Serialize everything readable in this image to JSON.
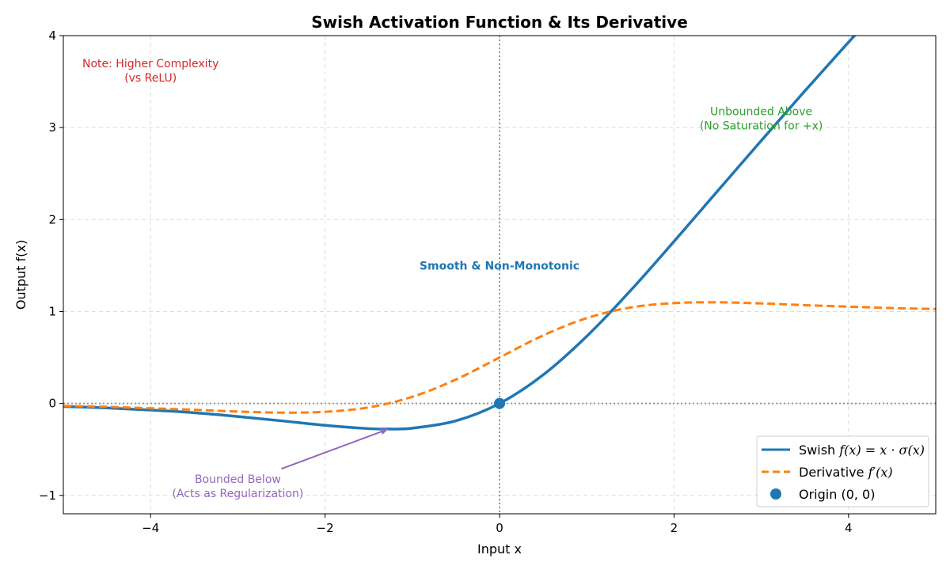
{
  "chart_data": {
    "type": "line",
    "title": "Swish Activation Function & Its Derivative",
    "xlabel": "Input x",
    "ylabel": "Output f(x)",
    "xlim": [
      -5,
      5
    ],
    "ylim": [
      -1.2,
      4
    ],
    "xticks": [
      -4,
      -2,
      0,
      2,
      4
    ],
    "xtick_labels": [
      "−4",
      "−2",
      "0",
      "2",
      "4"
    ],
    "yticks": [
      -1,
      0,
      1,
      2,
      3,
      4
    ],
    "ytick_labels": [
      "−1",
      "0",
      "1",
      "2",
      "3",
      "4"
    ],
    "grid": true,
    "legend_position": "lower-right",
    "series": [
      {
        "name": "Swish f(x) = x · σ(x)",
        "legend_prefix": "Swish ",
        "legend_math": "f(x) = x · σ(x)",
        "style": "solid",
        "color": "#1f77b4",
        "x": [
          -5,
          -4.5,
          -4,
          -3.5,
          -3,
          -2.5,
          -2,
          -1.5,
          -1.278,
          -1,
          -0.5,
          0,
          0.5,
          1,
          1.5,
          2,
          2.5,
          3,
          3.5,
          4,
          4.5,
          5
        ],
        "y": [
          -0.033,
          -0.049,
          -0.072,
          -0.101,
          -0.142,
          -0.189,
          -0.238,
          -0.274,
          -0.278,
          -0.269,
          -0.189,
          0,
          0.311,
          0.731,
          1.226,
          1.762,
          2.311,
          2.858,
          3.399,
          3.928,
          4.451,
          4.967
        ]
      },
      {
        "name": "Derivative f′(x)",
        "legend_prefix": "Derivative ",
        "legend_math": "f′(x)",
        "style": "dashed",
        "color": "#ff7f0e",
        "x": [
          -5,
          -4.5,
          -4,
          -3.5,
          -3,
          -2.5,
          -2,
          -1.5,
          -1,
          -0.5,
          0,
          0.5,
          1,
          1.5,
          2,
          2.5,
          3,
          3.5,
          4,
          4.5,
          5
        ],
        "y": [
          -0.027,
          -0.037,
          -0.053,
          -0.069,
          -0.088,
          -0.1,
          -0.091,
          -0.043,
          0.072,
          0.26,
          0.5,
          0.74,
          0.928,
          1.043,
          1.091,
          1.1,
          1.088,
          1.069,
          1.053,
          1.037,
          1.027
        ]
      },
      {
        "name": "Origin (0, 0)",
        "legend_label": "Origin (0, 0)",
        "style": "marker",
        "color": "#1f77b4",
        "x": [
          0
        ],
        "y": [
          0
        ]
      }
    ],
    "reference_lines": {
      "x": 0,
      "y": 0,
      "color": "#999999"
    },
    "annotations": [
      {
        "lines": [
          "Note: Higher Complexity",
          "(vs ReLU)"
        ],
        "x": -4,
        "y": 3.62,
        "color": "#d62728",
        "bold": false
      },
      {
        "lines": [
          "Unbounded Above",
          "(No Saturation for +x)"
        ],
        "x": 3,
        "y": 3.1,
        "color": "#2ca02c",
        "bold": false
      },
      {
        "lines": [
          "Smooth & Non-Monotonic"
        ],
        "x": 0,
        "y": 1.5,
        "color": "#1f77b4",
        "bold": true
      },
      {
        "lines": [
          "Bounded Below",
          "(Acts as Regularization)"
        ],
        "x": -3,
        "y": -0.9,
        "color": "#9467bd",
        "bold": false,
        "arrow_to": [
          -1.28,
          -0.28
        ]
      }
    ]
  }
}
